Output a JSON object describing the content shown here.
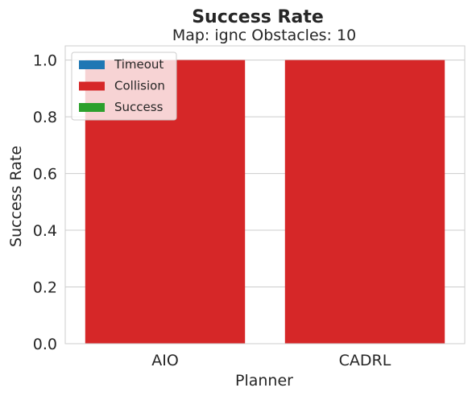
{
  "chart_data": {
    "type": "bar",
    "stacked": true,
    "title": "Success Rate",
    "subtitle": "Map: ignc Obstacles: 10",
    "xlabel": "Planner",
    "ylabel": "Success Rate",
    "categories": [
      "AIO",
      "CADRL"
    ],
    "ylim": [
      0,
      1.05
    ],
    "yticks": [
      "0.0",
      "0.2",
      "0.4",
      "0.6",
      "0.8",
      "1.0"
    ],
    "ytick_values": [
      0,
      0.2,
      0.4,
      0.6,
      0.8,
      1.0
    ],
    "grid": "horizontal",
    "legend_position": "top-left",
    "series": [
      {
        "name": "Timeout",
        "color": "#1f77b4",
        "values": [
          0,
          0
        ]
      },
      {
        "name": "Collision",
        "color": "#d62728",
        "values": [
          1.0,
          1.0
        ]
      },
      {
        "name": "Success",
        "color": "#2ca02c",
        "values": [
          0,
          0
        ]
      }
    ]
  }
}
